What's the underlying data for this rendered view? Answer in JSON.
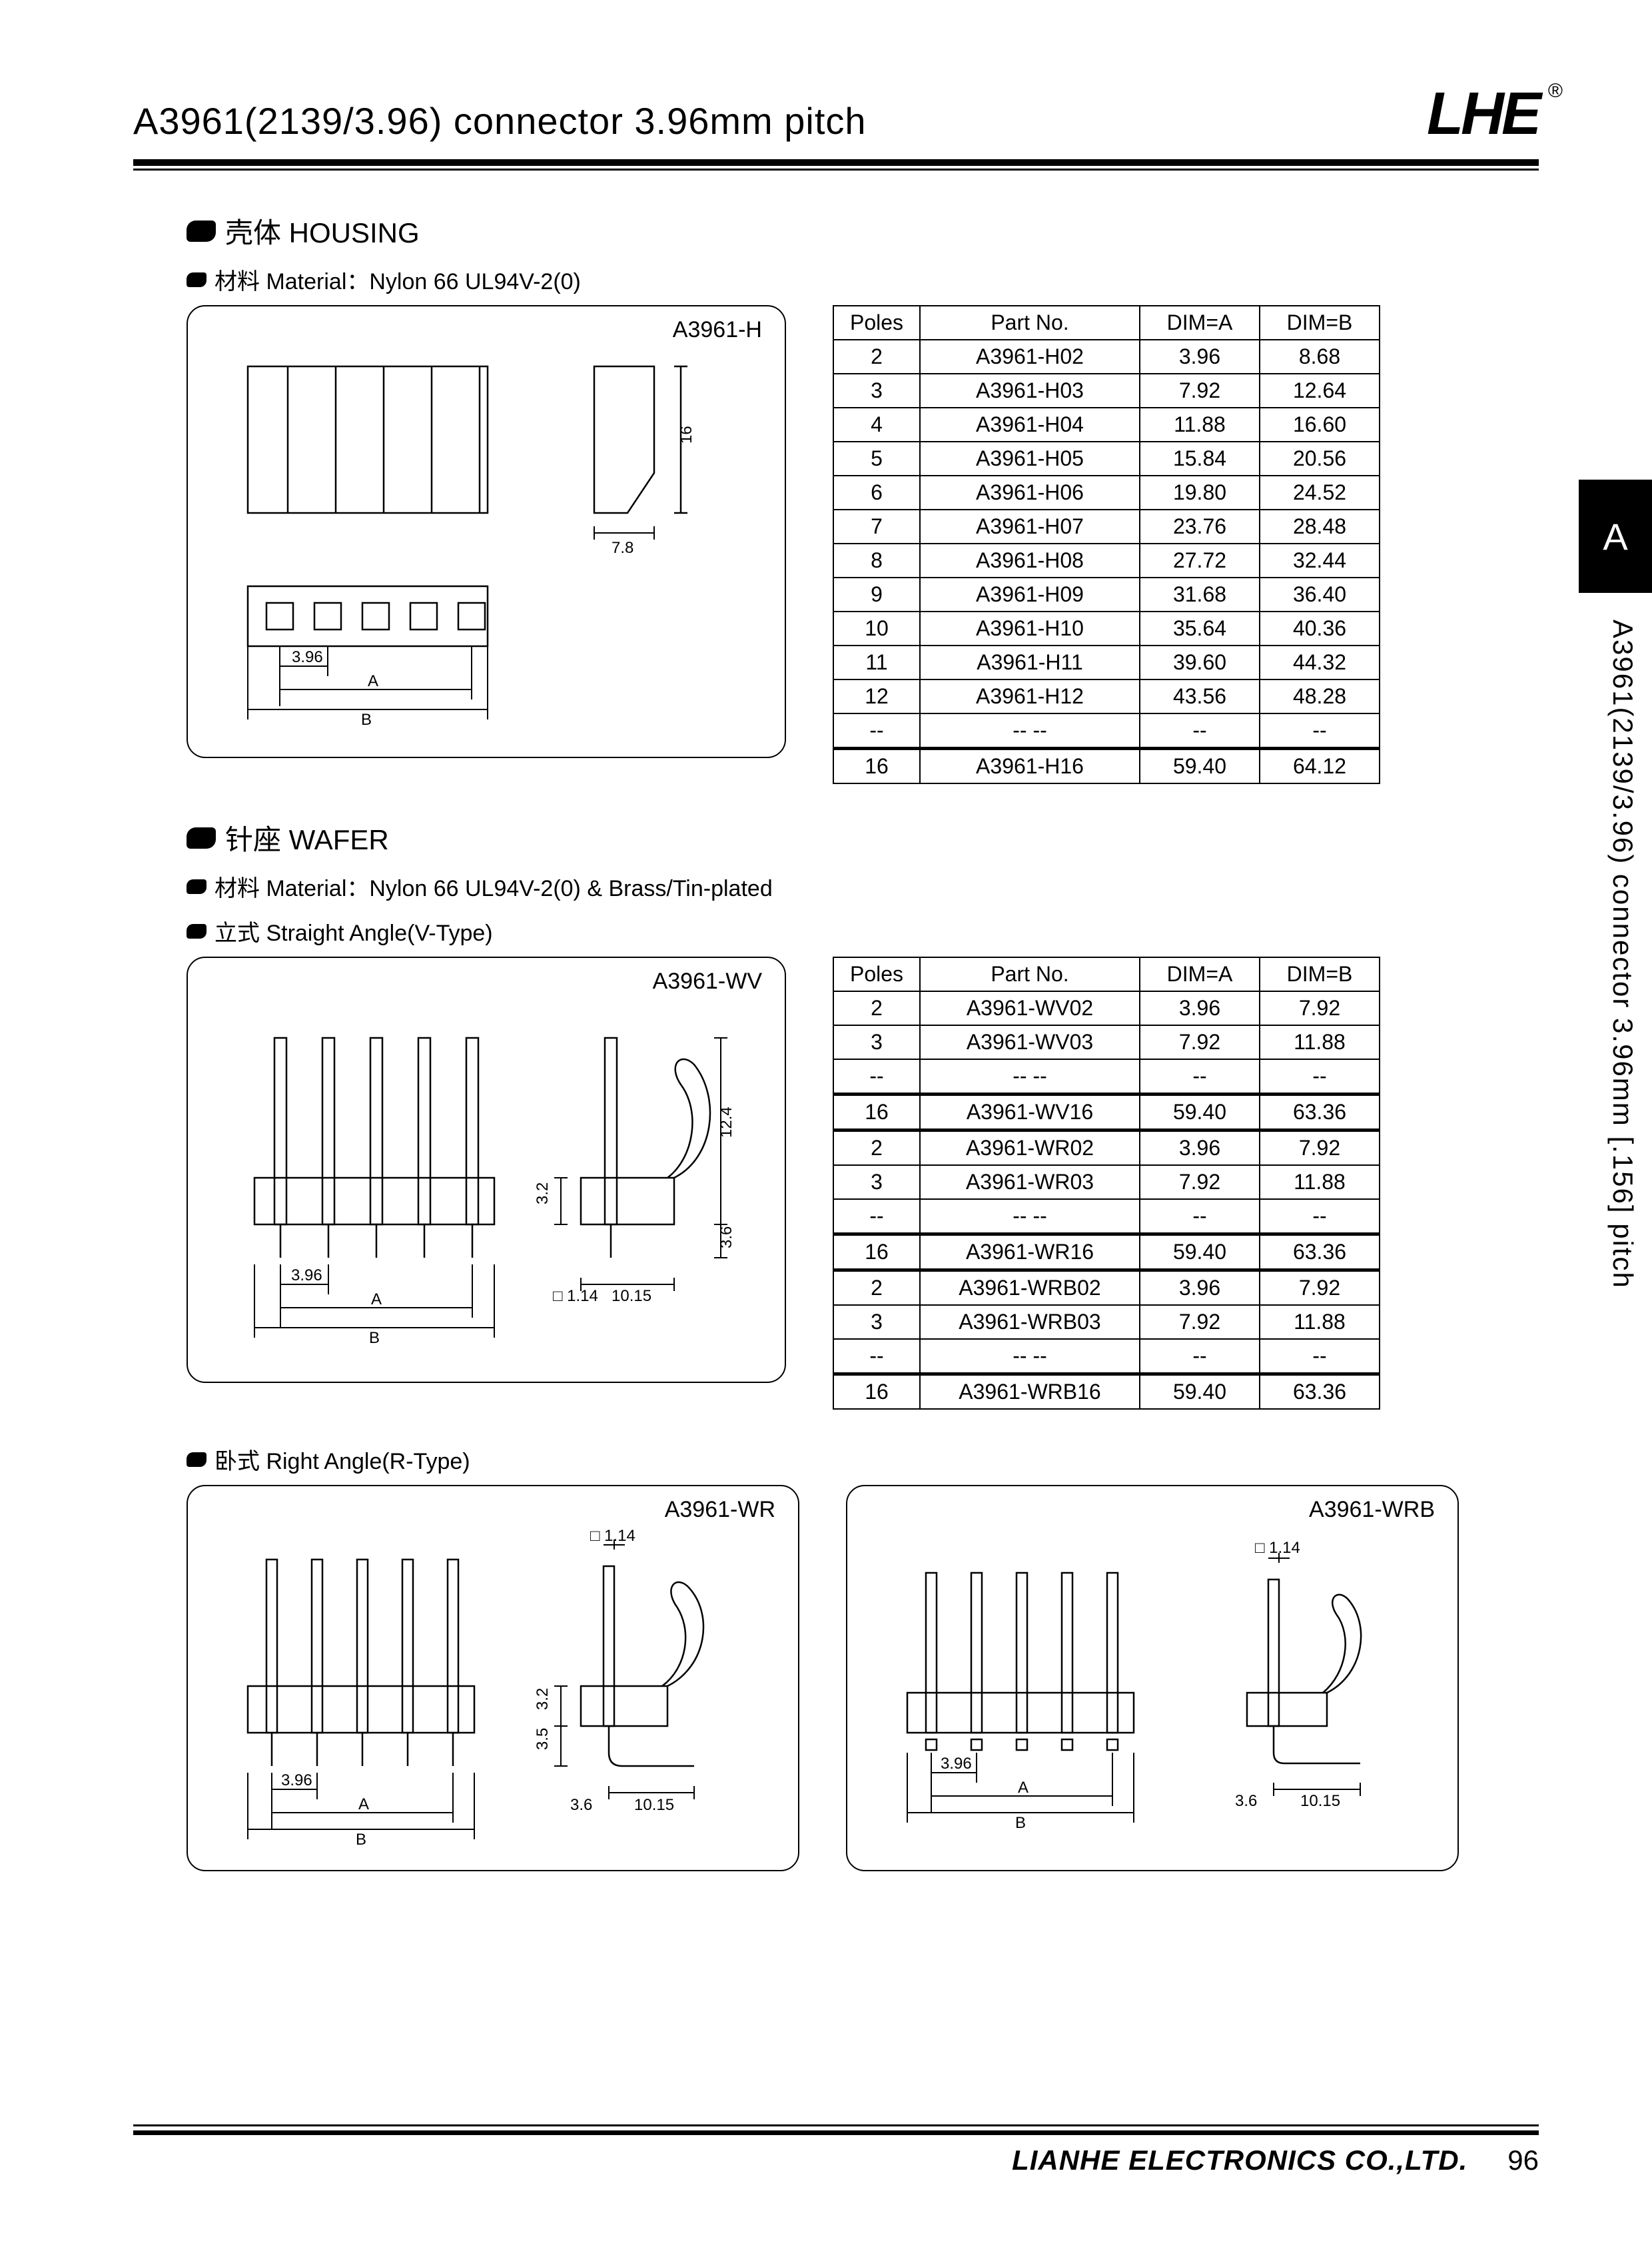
{
  "header": {
    "title": "A3961(2139/3.96) connector 3.96mm pitch",
    "logo": "LHE",
    "registered": "®"
  },
  "sideTab": "A",
  "sideText": "A3961(2139/3.96) connector 3.96mm [.156] pitch",
  "housing": {
    "section": "壳体 HOUSING",
    "material": "材料 Material：Nylon 66 UL94V-2(0)",
    "drawingLabel": "A3961-H",
    "dims": {
      "pitch": "3.96",
      "dimA": "A",
      "dimB": "B",
      "sideW": "7.8",
      "sideH": "16"
    },
    "tableHead": [
      "Poles",
      "Part No.",
      "DIM=A",
      "DIM=B"
    ],
    "rows": [
      [
        "2",
        "A3961-H02",
        "3.96",
        "8.68"
      ],
      [
        "3",
        "A3961-H03",
        "7.92",
        "12.64"
      ],
      [
        "4",
        "A3961-H04",
        "11.88",
        "16.60"
      ],
      [
        "5",
        "A3961-H05",
        "15.84",
        "20.56"
      ],
      [
        "6",
        "A3961-H06",
        "19.80",
        "24.52"
      ],
      [
        "7",
        "A3961-H07",
        "23.76",
        "28.48"
      ],
      [
        "8",
        "A3961-H08",
        "27.72",
        "32.44"
      ],
      [
        "9",
        "A3961-H09",
        "31.68",
        "36.40"
      ],
      [
        "10",
        "A3961-H10",
        "35.64",
        "40.36"
      ],
      [
        "11",
        "A3961-H11",
        "39.60",
        "44.32"
      ],
      [
        "12",
        "A3961-H12",
        "43.56",
        "48.28"
      ],
      [
        "--",
        "-- --",
        "--",
        "--"
      ],
      [
        "16",
        "A3961-H16",
        "59.40",
        "64.12"
      ]
    ]
  },
  "wafer": {
    "section": "针座 WAFER",
    "material": "材料 Material：Nylon 66 UL94V-2(0) & Brass/Tin-plated",
    "vtype": "立式 Straight Angle(V-Type)",
    "rtype": "卧式 Right Angle(R-Type)",
    "drawingLabelV": "A3961-WV",
    "drawingLabelR": "A3961-WR",
    "drawingLabelRB": "A3961-WRB",
    "dims": {
      "pitch": "3.96",
      "dimA": "A",
      "dimB": "B",
      "pin": "□ 1.14",
      "w": "10.15",
      "h1": "3.2",
      "h2": "12.4",
      "h3": "3.6",
      "h4": "3.5"
    },
    "tableHead": [
      "Poles",
      "Part No.",
      "DIM=A",
      "DIM=B"
    ],
    "rows": [
      [
        "2",
        "A3961-WV02",
        "3.96",
        "7.92"
      ],
      [
        "3",
        "A3961-WV03",
        "7.92",
        "11.88"
      ],
      [
        "--",
        "-- --",
        "--",
        "--"
      ],
      [
        "16",
        "A3961-WV16",
        "59.40",
        "63.36"
      ],
      [
        "2",
        "A3961-WR02",
        "3.96",
        "7.92"
      ],
      [
        "3",
        "A3961-WR03",
        "7.92",
        "11.88"
      ],
      [
        "--",
        "-- --",
        "--",
        "--"
      ],
      [
        "16",
        "A3961-WR16",
        "59.40",
        "63.36"
      ],
      [
        "2",
        "A3961-WRB02",
        "3.96",
        "7.92"
      ],
      [
        "3",
        "A3961-WRB03",
        "7.92",
        "11.88"
      ],
      [
        "--",
        "-- --",
        "--",
        "--"
      ],
      [
        "16",
        "A3961-WRB16",
        "59.40",
        "63.36"
      ]
    ]
  },
  "footer": {
    "company": "LIANHE ELECTRONICS CO.,LTD.",
    "page": "96"
  },
  "style": {
    "border": "#000000",
    "bg": "#ffffff",
    "strokeW": 2.5,
    "titleSize": 56,
    "tableFontSize": 32
  }
}
